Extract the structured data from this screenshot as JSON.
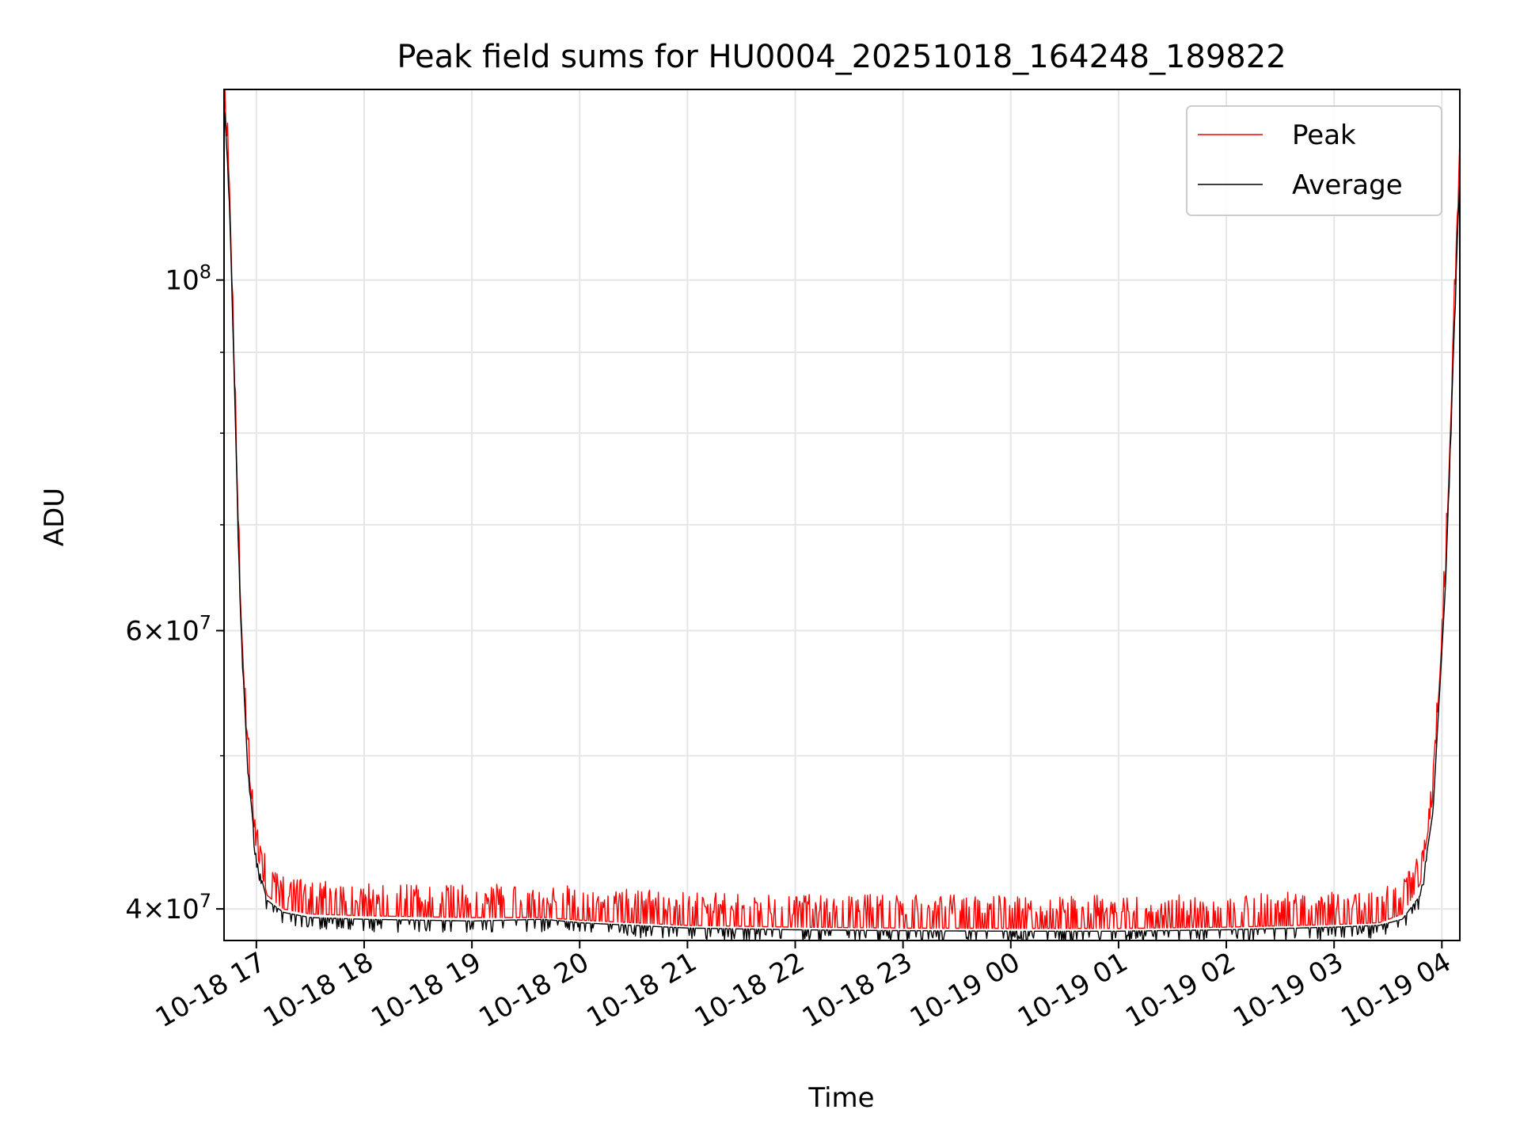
{
  "chart_data": {
    "type": "line",
    "title": "Peak field sums for HU0004_20251018_164248_189822",
    "xlabel": "Time",
    "ylabel": "ADU",
    "yscale": "log",
    "grid": true,
    "legend_position": "top-right",
    "x_range": [
      "2025-10-18 16:42",
      "2025-10-19 04:10"
    ],
    "y_range": [
      38200000,
      132000000
    ],
    "x_ticks": [
      {
        "value": "2025-10-18 17:00",
        "label": "10-18 17"
      },
      {
        "value": "2025-10-18 18:00",
        "label": "10-18 18"
      },
      {
        "value": "2025-10-18 19:00",
        "label": "10-18 19"
      },
      {
        "value": "2025-10-18 20:00",
        "label": "10-18 20"
      },
      {
        "value": "2025-10-18 21:00",
        "label": "10-18 21"
      },
      {
        "value": "2025-10-18 22:00",
        "label": "10-18 22"
      },
      {
        "value": "2025-10-18 23:00",
        "label": "10-18 23"
      },
      {
        "value": "2025-10-19 00:00",
        "label": "10-19 00"
      },
      {
        "value": "2025-10-19 01:00",
        "label": "10-19 01"
      },
      {
        "value": "2025-10-19 02:00",
        "label": "10-19 02"
      },
      {
        "value": "2025-10-19 03:00",
        "label": "10-19 03"
      },
      {
        "value": "2025-10-19 04:00",
        "label": "10-19 04"
      }
    ],
    "y_ticks_major": [
      {
        "value": 40000000,
        "mant": "4",
        "exp": "7"
      },
      {
        "value": 60000000,
        "mant": "6",
        "exp": "7"
      },
      {
        "value": 100000000,
        "mant": "",
        "exp": "8"
      }
    ],
    "y_ticks_minor": [
      50000000,
      70000000,
      80000000,
      90000000
    ],
    "series": [
      {
        "name": "Peak",
        "color": "#ff0000",
        "x": [
          "2025-10-18 16:42",
          "2025-10-18 16:45",
          "2025-10-18 16:48",
          "2025-10-18 16:51",
          "2025-10-18 16:55",
          "2025-10-18 17:00",
          "2025-10-18 17:06",
          "2025-10-18 17:15",
          "2025-10-18 17:30",
          "2025-10-18 18:00",
          "2025-10-18 19:00",
          "2025-10-18 19:40",
          "2025-10-18 20:00",
          "2025-10-18 21:00",
          "2025-10-18 22:00",
          "2025-10-18 23:00",
          "2025-10-19 00:00",
          "2025-10-19 01:00",
          "2025-10-19 02:00",
          "2025-10-19 03:00",
          "2025-10-19 03:25",
          "2025-10-19 03:38",
          "2025-10-19 03:48",
          "2025-10-19 03:55",
          "2025-10-19 04:02",
          "2025-10-19 04:10"
        ],
        "values": [
          132000000,
          115000000,
          85000000,
          63000000,
          50000000,
          43500000,
          40800000,
          40000000,
          39700000,
          39600000,
          39500000,
          39500000,
          39350000,
          39050000,
          38950000,
          38900000,
          38880000,
          38880000,
          38950000,
          39100000,
          39200000,
          39700000,
          41500000,
          47000000,
          65000000,
          120000000
        ]
      },
      {
        "name": "Average",
        "color": "#000000",
        "x": [
          "2025-10-18 16:42",
          "2025-10-18 16:45",
          "2025-10-18 16:48",
          "2025-10-18 16:51",
          "2025-10-18 16:55",
          "2025-10-18 17:00",
          "2025-10-18 17:06",
          "2025-10-18 17:15",
          "2025-10-18 17:30",
          "2025-10-18 18:00",
          "2025-10-18 19:00",
          "2025-10-18 19:40",
          "2025-10-18 20:00",
          "2025-10-18 21:00",
          "2025-10-18 22:00",
          "2025-10-18 23:00",
          "2025-10-19 00:00",
          "2025-10-19 01:00",
          "2025-10-19 02:00",
          "2025-10-19 03:00",
          "2025-10-19 03:25",
          "2025-10-19 03:38",
          "2025-10-19 03:48",
          "2025-10-19 03:55",
          "2025-10-19 04:02",
          "2025-10-19 04:10"
        ],
        "values": [
          130000000,
          113000000,
          84000000,
          62000000,
          49500000,
          43000000,
          40500000,
          39800000,
          39500000,
          39400000,
          39300000,
          39400000,
          39200000,
          38900000,
          38800000,
          38750000,
          38720000,
          38720000,
          38800000,
          38950000,
          39050000,
          39400000,
          40800000,
          46000000,
          64000000,
          118000000
        ]
      }
    ]
  }
}
